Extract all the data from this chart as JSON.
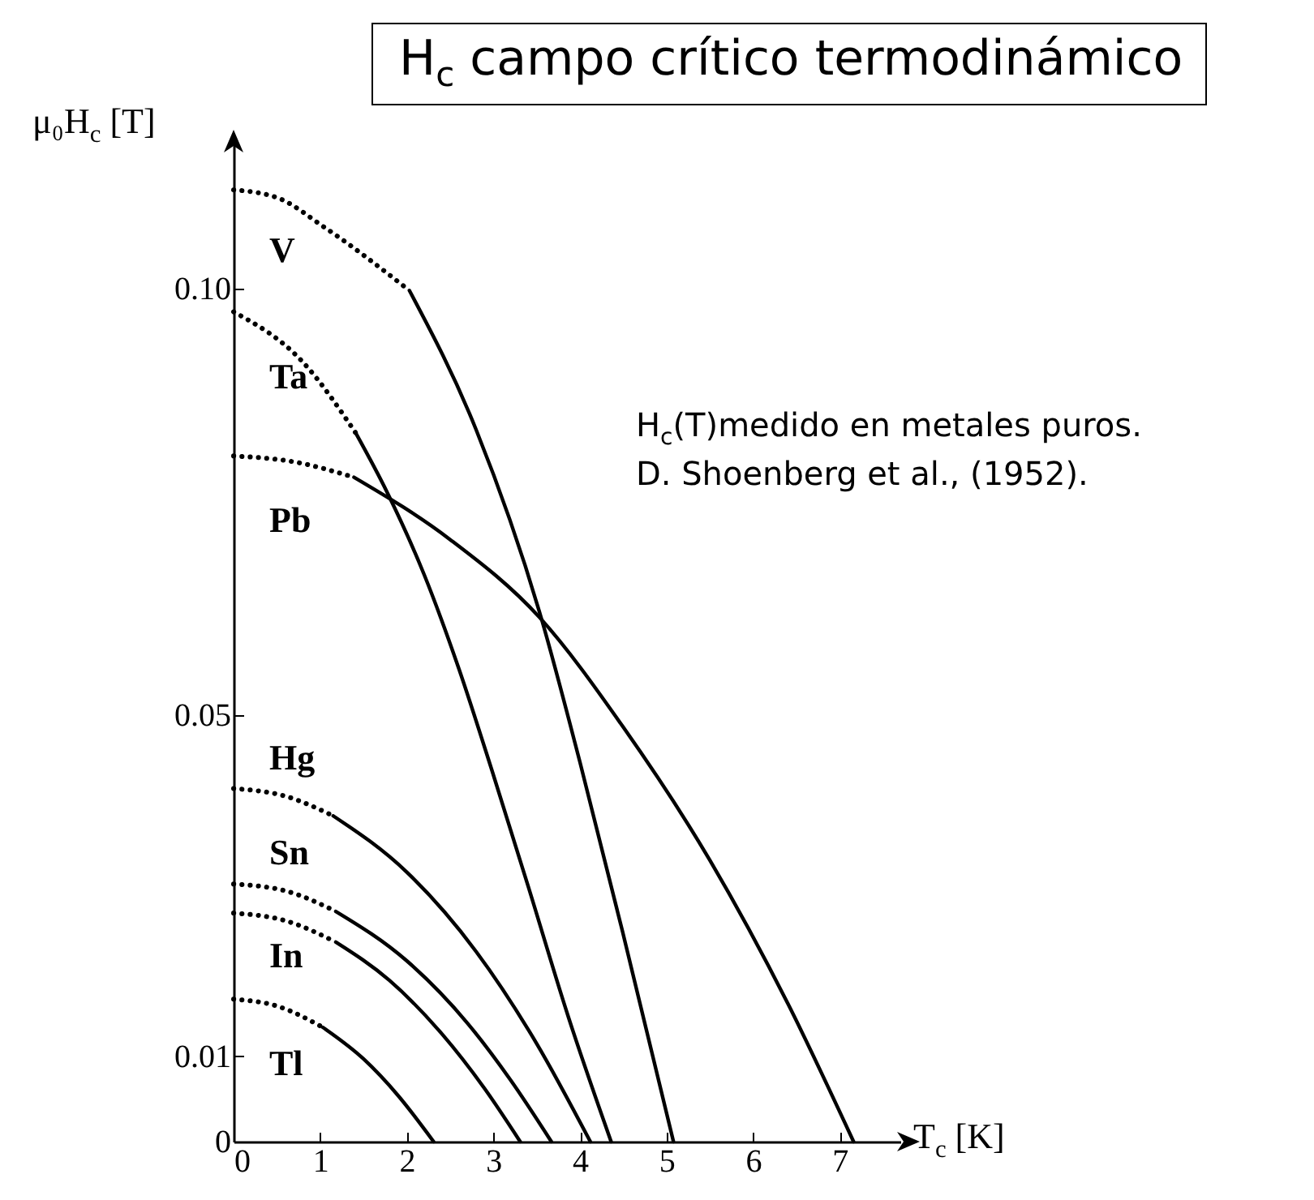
{
  "chart_data": {
    "type": "line",
    "title": "H$_{c}$ campo crítico termodinámico",
    "xlabel": "T$_{c}$ [K]",
    "ylabel": "μ₀H$_{c}$ [T]",
    "annotations": [
      "H$_{c}$(T)medido en metales puros.",
      "D. Shoenberg et al., (1952)."
    ],
    "xlim": [
      0,
      7.7
    ],
    "ylim": [
      0,
      0.1177
    ],
    "xticks": [
      0,
      1,
      2,
      3,
      4,
      5,
      6,
      7
    ],
    "yticks": [
      0,
      0.01,
      0.05,
      {
        "value": 0.1,
        "label": "0.10"
      }
    ],
    "series": [
      {
        "name": "V",
        "line_style": "dotted",
        "color": "#000000",
        "x": [
          0,
          0.5,
          1.05,
          2.03
        ],
        "values": [
          0.1116,
          0.1107,
          0.1072,
          0.0998
        ]
      },
      {
        "line_style": "solid",
        "color": "#000000",
        "x": [
          2.03,
          2.8,
          3.53,
          4.0,
          4.5,
          5.08
        ],
        "values": [
          0.0998,
          0.0835,
          0.0622,
          0.0445,
          0.0243,
          0
        ]
      },
      {
        "name": "Ta",
        "line_style": "dotted",
        "color": "#000000",
        "x": [
          0,
          0.8,
          1.41
        ],
        "values": [
          0.0973,
          0.0914,
          0.0831
        ]
      },
      {
        "line_style": "solid",
        "color": "#000000",
        "x": [
          1.41,
          1.77,
          2.2,
          2.6,
          3.0,
          3.4,
          3.87,
          4.36
        ],
        "values": [
          0.0831,
          0.0762,
          0.0665,
          0.0555,
          0.043,
          0.03,
          0.0145,
          0
        ]
      },
      {
        "name": "Pb",
        "line_style": "dotted",
        "color": "#000000",
        "x": [
          0,
          0.7,
          1.39
        ],
        "values": [
          0.0804,
          0.0797,
          0.0779
        ]
      },
      {
        "line_style": "solid",
        "color": "#000000",
        "x": [
          1.39,
          2.5,
          3.53,
          4.5,
          5.5,
          6.4,
          7.16
        ],
        "values": [
          0.0779,
          0.0706,
          0.0615,
          0.0486,
          0.033,
          0.0162,
          0
        ]
      },
      {
        "name": "Hg",
        "line_style": "dotted",
        "color": "#000000",
        "x": [
          0,
          0.6,
          1.15
        ],
        "values": [
          0.0414,
          0.0405,
          0.0382
        ]
      },
      {
        "line_style": "solid",
        "color": "#000000",
        "x": [
          1.15,
          2,
          2.8,
          3.5,
          4.12
        ],
        "values": [
          0.0382,
          0.0316,
          0.0223,
          0.0115,
          0
        ]
      },
      {
        "name": "Sn",
        "line_style": "dotted",
        "color": "#000000",
        "x": [
          0,
          0.6,
          1.18
        ],
        "values": [
          0.0302,
          0.0294,
          0.027
        ]
      },
      {
        "line_style": "solid",
        "color": "#000000",
        "x": [
          1.18,
          2,
          2.7,
          3.2,
          3.67
        ],
        "values": [
          0.027,
          0.0212,
          0.0139,
          0.0072,
          0
        ]
      },
      {
        "name": "In",
        "line_style": "dotted",
        "color": "#000000",
        "x": [
          0,
          0.6,
          1.18
        ],
        "values": [
          0.0268,
          0.0259,
          0.0234
        ]
      },
      {
        "line_style": "solid",
        "color": "#000000",
        "x": [
          1.18,
          1.8,
          2.4,
          2.9,
          3.31
        ],
        "values": [
          0.0234,
          0.0189,
          0.0127,
          0.0062,
          0
        ]
      },
      {
        "name": "Tl",
        "line_style": "dotted",
        "color": "#000000",
        "x": [
          0,
          0.5,
          1.03
        ],
        "values": [
          0.0167,
          0.0159,
          0.0134
        ]
      },
      {
        "line_style": "solid",
        "color": "#000000",
        "x": [
          1.03,
          1.5,
          1.9,
          2.31
        ],
        "values": [
          0.0134,
          0.0097,
          0.0054,
          0
        ]
      }
    ]
  }
}
